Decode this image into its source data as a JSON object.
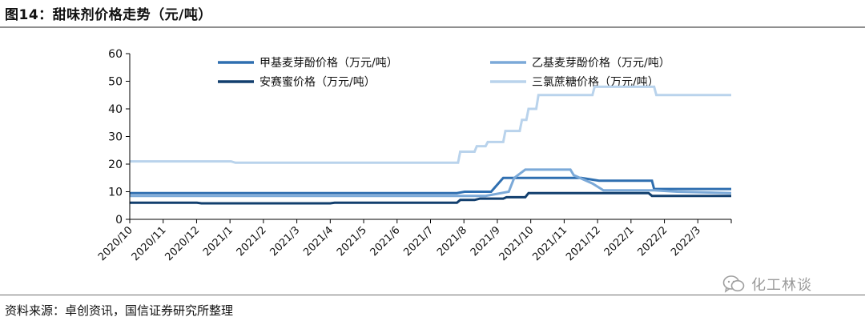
{
  "figure": {
    "title": "图14：甜味剂价格走势（元/吨）",
    "source": "资料来源：卓创资讯，国信证券研究所整理",
    "watermark": "化工林谈"
  },
  "chart_data": {
    "type": "line",
    "title": "甜味剂价格走势（元/吨）",
    "xlabel": "",
    "ylabel": "",
    "ylim": [
      0,
      60
    ],
    "yticks": [
      0,
      10,
      20,
      30,
      40,
      50,
      60
    ],
    "xlim": [
      "2020-10-01",
      "2022-03-31"
    ],
    "x_tick_labels": [
      "2020/10",
      "2020/11",
      "2020/12",
      "2021/1",
      "2021/2",
      "2021/3",
      "2021/4",
      "2021/5",
      "2021/6",
      "2021/7",
      "2021/8",
      "2021/9",
      "2021/10",
      "2021/11",
      "2021/12",
      "2022/1",
      "2022/2",
      "2022/3"
    ],
    "legend_position": "top",
    "grid": false,
    "series": [
      {
        "name": "甲基麦芽酚价格（万元/吨）",
        "color": "#2f6fb0",
        "points": [
          [
            "2020-10-01",
            9.5
          ],
          [
            "2021-07-25",
            9.5
          ],
          [
            "2021-08-01",
            10
          ],
          [
            "2021-08-25",
            10
          ],
          [
            "2021-09-05",
            15
          ],
          [
            "2021-11-15",
            15
          ],
          [
            "2021-12-01",
            14
          ],
          [
            "2022-01-18",
            14
          ],
          [
            "2022-01-20",
            11
          ],
          [
            "2022-03-31",
            11
          ]
        ]
      },
      {
        "name": "乙基麦芽酚价格（万元/吨）",
        "color": "#7ba9d8",
        "points": [
          [
            "2020-10-01",
            8.5
          ],
          [
            "2021-08-20",
            8.5
          ],
          [
            "2021-09-10",
            10
          ],
          [
            "2021-09-15",
            15
          ],
          [
            "2021-09-25",
            18
          ],
          [
            "2021-11-05",
            18
          ],
          [
            "2021-11-08",
            16
          ],
          [
            "2021-11-25",
            13
          ],
          [
            "2021-12-05",
            10.5
          ],
          [
            "2022-01-20",
            10.5
          ],
          [
            "2022-02-10",
            10
          ],
          [
            "2022-03-31",
            9.5
          ]
        ]
      },
      {
        "name": "安赛蜜价格（万元/吨）",
        "color": "#123f6e",
        "points": [
          [
            "2020-10-01",
            6
          ],
          [
            "2020-12-01",
            6
          ],
          [
            "2020-12-05",
            5.8
          ],
          [
            "2021-04-01",
            5.8
          ],
          [
            "2021-04-05",
            6
          ],
          [
            "2021-07-25",
            6
          ],
          [
            "2021-07-28",
            7
          ],
          [
            "2021-08-10",
            7
          ],
          [
            "2021-08-15",
            7.5
          ],
          [
            "2021-09-05",
            7.5
          ],
          [
            "2021-09-08",
            8
          ],
          [
            "2021-09-25",
            8
          ],
          [
            "2021-09-28",
            9.5
          ],
          [
            "2022-01-15",
            9.5
          ],
          [
            "2022-01-18",
            8.5
          ],
          [
            "2022-03-31",
            8.5
          ]
        ]
      },
      {
        "name": "三氯蔗糖价格（万元/吨）",
        "color": "#b9d3ec",
        "points": [
          [
            "2020-10-01",
            21
          ],
          [
            "2021-01-01",
            21
          ],
          [
            "2021-01-05",
            20.5
          ],
          [
            "2021-07-26",
            20.5
          ],
          [
            "2021-07-28",
            24.5
          ],
          [
            "2021-08-10",
            24.5
          ],
          [
            "2021-08-12",
            26.5
          ],
          [
            "2021-08-20",
            26.5
          ],
          [
            "2021-08-22",
            28
          ],
          [
            "2021-09-05",
            28
          ],
          [
            "2021-09-07",
            32
          ],
          [
            "2021-09-20",
            32
          ],
          [
            "2021-09-22",
            36
          ],
          [
            "2021-09-26",
            36
          ],
          [
            "2021-09-28",
            40
          ],
          [
            "2021-10-05",
            40
          ],
          [
            "2021-10-07",
            45
          ],
          [
            "2021-11-25",
            45
          ],
          [
            "2021-11-27",
            48
          ],
          [
            "2022-01-20",
            48
          ],
          [
            "2022-01-22",
            45
          ],
          [
            "2022-03-31",
            45
          ]
        ]
      }
    ]
  }
}
